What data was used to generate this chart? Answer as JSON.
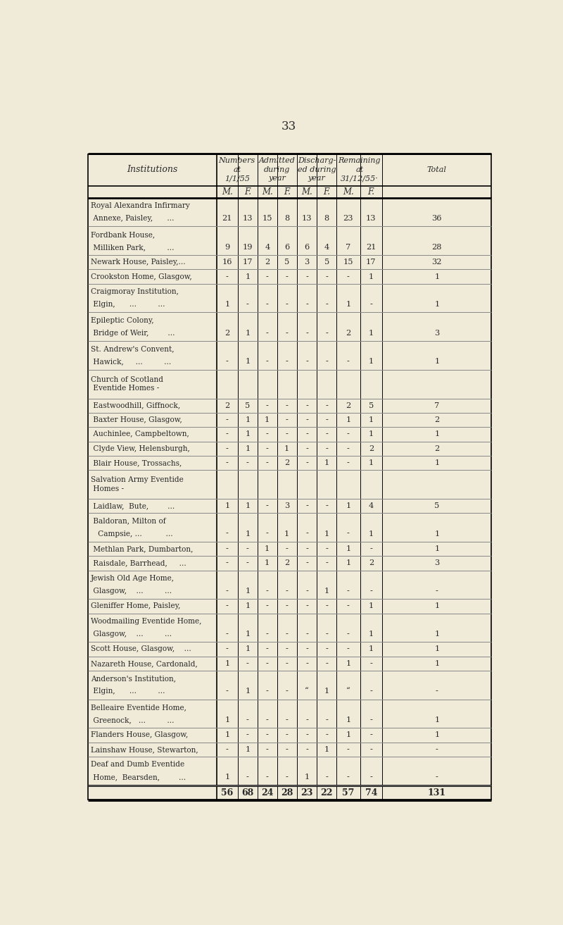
{
  "page_number": "33",
  "bg_color": "#f0ead8",
  "text_color": "#2a2a2a",
  "rows": [
    {
      "name_lines": [
        "Royal Alexandra Infirmary",
        " Annexe, Paisley,      ..."
      ],
      "values": [
        "21",
        "13",
        "15",
        "8",
        "13",
        "8",
        "23",
        "13",
        "36"
      ],
      "num_lines": 2
    },
    {
      "name_lines": [
        "Fordbank House,",
        " Milliken Park,         ..."
      ],
      "values": [
        "9",
        "19",
        "4",
        "6",
        "6",
        "4",
        "7",
        "21",
        "28"
      ],
      "num_lines": 2
    },
    {
      "name_lines": [
        "Newark House, Paisley,..."
      ],
      "values": [
        "16",
        "17",
        "2",
        "5",
        "3",
        "5",
        "15",
        "17",
        "32"
      ],
      "num_lines": 1
    },
    {
      "name_lines": [
        "Crookston Home, Glasgow,"
      ],
      "values": [
        "-",
        "1",
        "-",
        "-",
        "-",
        "-",
        "-",
        "1",
        "1"
      ],
      "num_lines": 1
    },
    {
      "name_lines": [
        "Craigmoray Institution,",
        " Elgin,      ...         ..."
      ],
      "values": [
        "1",
        "-",
        "-",
        "-",
        "-",
        "-",
        "1",
        "-",
        "1"
      ],
      "num_lines": 2
    },
    {
      "name_lines": [
        "Epileptic Colony,",
        " Bridge of Weir,        ..."
      ],
      "values": [
        "2",
        "1",
        "-",
        "-",
        "-",
        "-",
        "2",
        "1",
        "3"
      ],
      "num_lines": 2
    },
    {
      "name_lines": [
        "St. Andrew's Convent,",
        " Hawick,     ...         ..."
      ],
      "values": [
        "-",
        "1",
        "-",
        "-",
        "-",
        "-",
        "-",
        "1",
        "1"
      ],
      "num_lines": 2
    },
    {
      "name_lines": [
        "Church of Scotland",
        " Eventide Homes -"
      ],
      "values": [
        "",
        "",
        "",
        "",
        "",
        "",
        "",
        "",
        ""
      ],
      "num_lines": 2
    },
    {
      "name_lines": [
        " Eastwoodhill, Giffnock,"
      ],
      "values": [
        "2",
        "5",
        "-",
        "-",
        "-",
        "-",
        "2",
        "5",
        "7"
      ],
      "num_lines": 1
    },
    {
      "name_lines": [
        " Baxter House, Glasgow,"
      ],
      "values": [
        "-",
        "1",
        "1",
        "-",
        "-",
        "-",
        "1",
        "1",
        "2"
      ],
      "num_lines": 1
    },
    {
      "name_lines": [
        " Auchinlee, Campbeltown,"
      ],
      "values": [
        "-",
        "1",
        "-",
        "-",
        "-",
        "-",
        "-",
        "1",
        "1"
      ],
      "num_lines": 1
    },
    {
      "name_lines": [
        " Clyde View, Helensburgh,"
      ],
      "values": [
        "-",
        "1",
        "-",
        "1",
        "-",
        "-",
        "-",
        "2",
        "2"
      ],
      "num_lines": 1
    },
    {
      "name_lines": [
        " Blair House, Trossachs,"
      ],
      "values": [
        "-",
        "-",
        "-",
        "2",
        "-",
        "1",
        "-",
        "1",
        "1"
      ],
      "num_lines": 1
    },
    {
      "name_lines": [
        "Salvation Army Eventide",
        " Homes -"
      ],
      "values": [
        "",
        "",
        "",
        "",
        "",
        "",
        "",
        "",
        ""
      ],
      "num_lines": 2
    },
    {
      "name_lines": [
        " Laidlaw,  Bute,        ..."
      ],
      "values": [
        "1",
        "1",
        "-",
        "3",
        "-",
        "-",
        "1",
        "4",
        "5"
      ],
      "num_lines": 1
    },
    {
      "name_lines": [
        " Baldoran, Milton of",
        "   Campsie, ...          ..."
      ],
      "values": [
        "-",
        "1",
        "-",
        "1",
        "-",
        "1",
        "-",
        "1",
        "1"
      ],
      "num_lines": 2
    },
    {
      "name_lines": [
        " Methlan Park, Dumbarton,"
      ],
      "values": [
        "-",
        "-",
        "1",
        "-",
        "-",
        "-",
        "1",
        "-",
        "1"
      ],
      "num_lines": 1
    },
    {
      "name_lines": [
        " Raisdale, Barrhead,     ..."
      ],
      "values": [
        "-",
        "-",
        "1",
        "2",
        "-",
        "-",
        "1",
        "2",
        "3"
      ],
      "num_lines": 1
    },
    {
      "name_lines": [
        "Jewish Old Age Home,",
        " Glasgow,    ...         ..."
      ],
      "values": [
        "-",
        "1",
        "-",
        "-",
        "-",
        "1",
        "-",
        "-",
        "-"
      ],
      "num_lines": 2
    },
    {
      "name_lines": [
        "Gleniffer Home, Paisley,"
      ],
      "values": [
        "-",
        "1",
        "-",
        "-",
        "-",
        "-",
        "-",
        "1",
        "1"
      ],
      "num_lines": 1
    },
    {
      "name_lines": [
        "Woodmailing Eventide Home,",
        " Glasgow,    ...         ..."
      ],
      "values": [
        "-",
        "1",
        "-",
        "-",
        "-",
        "-",
        "-",
        "1",
        "1"
      ],
      "num_lines": 2
    },
    {
      "name_lines": [
        "Scott House, Glasgow,    ..."
      ],
      "values": [
        "-",
        "1",
        "-",
        "-",
        "-",
        "-",
        "-",
        "1",
        "1"
      ],
      "num_lines": 1
    },
    {
      "name_lines": [
        "Nazareth House, Cardonald,"
      ],
      "values": [
        "1",
        "-",
        "-",
        "-",
        "-",
        "-",
        "1",
        "-",
        "1"
      ],
      "num_lines": 1
    },
    {
      "name_lines": [
        "Anderson's Institution,",
        " Elgin,      ...         ..."
      ],
      "values": [
        "-",
        "1",
        "-",
        "-",
        "“",
        "1",
        "“",
        "-",
        "-"
      ],
      "num_lines": 2
    },
    {
      "name_lines": [
        "Belleaire Eventide Home,",
        " Greenock,   ...         ..."
      ],
      "values": [
        "1",
        "-",
        "-",
        "-",
        "-",
        "-",
        "1",
        "-",
        "1"
      ],
      "num_lines": 2
    },
    {
      "name_lines": [
        "Flanders House, Glasgow,"
      ],
      "values": [
        "1",
        "-",
        "-",
        "-",
        "-",
        "-",
        "1",
        "-",
        "1"
      ],
      "num_lines": 1
    },
    {
      "name_lines": [
        "Lainshaw House, Stewarton,"
      ],
      "values": [
        "-",
        "1",
        "-",
        "-",
        "-",
        "1",
        "-",
        "-",
        "-"
      ],
      "num_lines": 1
    },
    {
      "name_lines": [
        "Deaf and Dumb Eventide",
        " Home,  Bearsden,        ..."
      ],
      "values": [
        "1",
        "-",
        "-",
        "-",
        "1",
        "-",
        "-",
        "-",
        "-"
      ],
      "num_lines": 2
    }
  ],
  "totals": [
    "56",
    "68",
    "24",
    "28",
    "23",
    "22",
    "57",
    "74",
    "131"
  ]
}
